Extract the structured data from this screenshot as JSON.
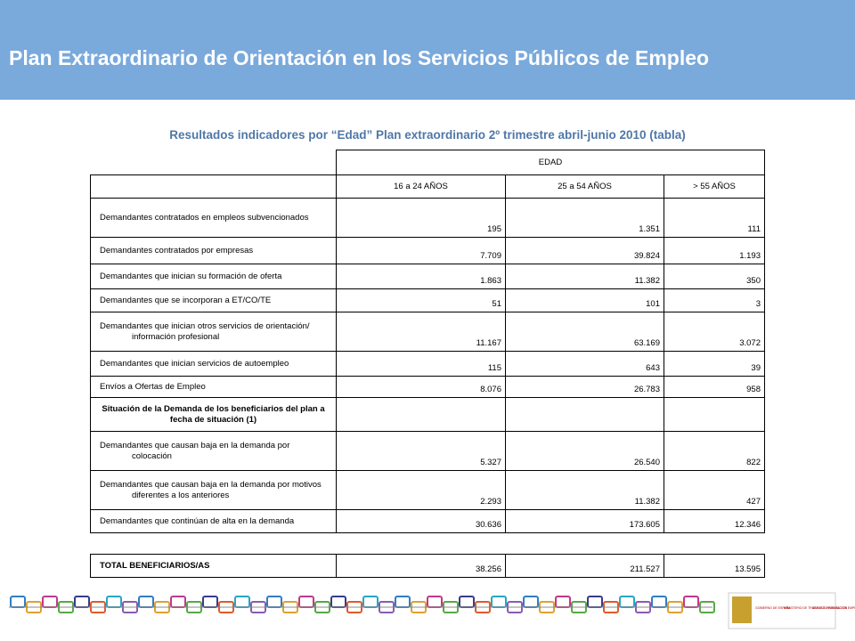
{
  "header": {
    "title": "Plan Extraordinario de Orientación en los Servicios Públicos de Empleo"
  },
  "subtitle": "Resultados indicadores por “Edad” Plan extraordinario 2º trimestre abril-junio 2010 (tabla)",
  "table": {
    "group_header": "EDAD",
    "columns": [
      "16 a 24 AÑOS",
      "25 a 54 AÑOS",
      "> 55 AÑOS"
    ],
    "rows": [
      {
        "label": "Demandantes contratados en empleos subvencionados",
        "values": [
          "195",
          "1.351",
          "111"
        ]
      },
      {
        "label": "Demandantes contratados por empresas",
        "values": [
          "7.709",
          "39.824",
          "1.193"
        ]
      },
      {
        "label": "Demandantes que inician su formación de oferta",
        "values": [
          "1.863",
          "11.382",
          "350"
        ]
      },
      {
        "label": "Demandantes que se incorporan a ET/CO/TE",
        "values": [
          "51",
          "101",
          "3"
        ]
      },
      {
        "label": "Demandantes que inician otros servicios de orientación/ información profesional",
        "values": [
          "11.167",
          "63.169",
          "3.072"
        ]
      },
      {
        "label": "Demandantes que inician servicios de autoempleo",
        "values": [
          "115",
          "643",
          "39"
        ]
      },
      {
        "label": "Envíos a Ofertas de Empleo",
        "values": [
          "8.076",
          "26.783",
          "958"
        ]
      },
      {
        "label": "Situación de la Demanda de los beneficiarios del plan a fecha de situación (1)",
        "section": true
      },
      {
        "label": "Demandantes que causan baja en la demanda por colocación",
        "values": [
          "5.327",
          "26.540",
          "822"
        ]
      },
      {
        "label": "Demandantes que causan baja en la demanda por motivos diferentes a los anteriores",
        "values": [
          "2.293",
          "11.382",
          "427"
        ]
      },
      {
        "label": "Demandantes que continúan de alta en la demanda",
        "values": [
          "30.636",
          "173.605",
          "12.346"
        ]
      }
    ],
    "total": {
      "label": "TOTAL BENEFICIARIOS/AS",
      "values": [
        "38.256",
        "211.527",
        "13.595"
      ]
    }
  },
  "footer": {
    "logos": [
      "GOBIERNO DE ESPAÑA",
      "MINISTERIO DE TRABAJO E INMIGRACIÓN",
      "SERVICIO PÚBLICO DE EMPLEO ESTATAL"
    ]
  }
}
